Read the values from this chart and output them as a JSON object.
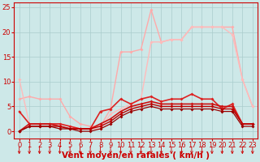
{
  "background_color": "#cde8e8",
  "grid_color": "#aacccc",
  "xlabel": "Vent moyen/en rafales ( km/h )",
  "xlim": [
    -0.5,
    23.5
  ],
  "ylim": [
    -1.5,
    26
  ],
  "yticks": [
    0,
    5,
    10,
    15,
    20,
    25
  ],
  "xticks": [
    0,
    1,
    2,
    3,
    4,
    5,
    6,
    7,
    8,
    9,
    10,
    11,
    12,
    13,
    14,
    15,
    16,
    17,
    18,
    19,
    20,
    21,
    22,
    23
  ],
  "series": [
    {
      "x": [
        0,
        1,
        2,
        3,
        4,
        5,
        6,
        7,
        8,
        9,
        10,
        11,
        12,
        13,
        14,
        15,
        16,
        17,
        18,
        19,
        20,
        21,
        22,
        23
      ],
      "y": [
        6.5,
        7.0,
        6.5,
        6.5,
        6.5,
        3.0,
        1.5,
        1.0,
        1.0,
        4.5,
        16.0,
        16.0,
        16.5,
        24.5,
        18.0,
        18.5,
        18.5,
        21.0,
        21.0,
        21.0,
        21.0,
        21.0,
        10.5,
        5.0
      ],
      "color": "#ffaaaa",
      "marker": "D",
      "markersize": 2,
      "linewidth": 1.0
    },
    {
      "x": [
        0,
        1,
        2,
        3,
        4,
        5,
        6,
        7,
        8,
        9,
        10,
        11,
        12,
        13,
        14,
        15,
        16,
        17,
        18,
        19,
        20,
        21,
        22,
        23
      ],
      "y": [
        10.5,
        1.5,
        1.5,
        1.5,
        1.5,
        1.0,
        0.5,
        0.5,
        0.5,
        3.5,
        4.5,
        5.5,
        6.5,
        18.0,
        18.0,
        18.5,
        18.5,
        21.0,
        21.0,
        21.0,
        21.0,
        19.5,
        10.5,
        5.0
      ],
      "color": "#ffbbbb",
      "marker": "D",
      "markersize": 2,
      "linewidth": 1.0
    },
    {
      "x": [
        0,
        1,
        2,
        3,
        4,
        5,
        6,
        7,
        8,
        9,
        10,
        11,
        12,
        13,
        14,
        15,
        16,
        17,
        18,
        19,
        20,
        21,
        22,
        23
      ],
      "y": [
        4.0,
        1.5,
        1.5,
        1.5,
        1.5,
        1.0,
        0.5,
        0.5,
        4.0,
        4.5,
        6.5,
        5.5,
        6.5,
        7.0,
        6.0,
        6.5,
        6.5,
        7.5,
        6.5,
        6.5,
        4.5,
        5.5,
        1.5,
        1.5
      ],
      "color": "#dd2222",
      "marker": "D",
      "markersize": 2,
      "linewidth": 1.2
    },
    {
      "x": [
        0,
        1,
        2,
        3,
        4,
        5,
        6,
        7,
        8,
        9,
        10,
        11,
        12,
        13,
        14,
        15,
        16,
        17,
        18,
        19,
        20,
        21,
        22,
        23
      ],
      "y": [
        0.0,
        1.5,
        1.5,
        1.5,
        1.0,
        0.5,
        0.5,
        0.5,
        1.5,
        2.5,
        4.0,
        5.0,
        5.5,
        6.0,
        5.5,
        5.5,
        5.5,
        5.5,
        5.5,
        5.5,
        5.0,
        5.0,
        1.5,
        1.5
      ],
      "color": "#cc1111",
      "marker": "D",
      "markersize": 2,
      "linewidth": 1.2
    },
    {
      "x": [
        0,
        1,
        2,
        3,
        4,
        5,
        6,
        7,
        8,
        9,
        10,
        11,
        12,
        13,
        14,
        15,
        16,
        17,
        18,
        19,
        20,
        21,
        22,
        23
      ],
      "y": [
        0.0,
        1.0,
        1.0,
        1.0,
        1.0,
        0.5,
        0.5,
        0.5,
        1.0,
        2.0,
        3.5,
        4.5,
        5.0,
        5.5,
        5.0,
        5.0,
        5.0,
        5.0,
        5.0,
        5.0,
        4.5,
        4.5,
        1.5,
        1.5
      ],
      "color": "#bb0000",
      "marker": "D",
      "markersize": 2,
      "linewidth": 1.0
    },
    {
      "x": [
        0,
        1,
        2,
        3,
        4,
        5,
        6,
        7,
        8,
        9,
        10,
        11,
        12,
        13,
        14,
        15,
        16,
        17,
        18,
        19,
        20,
        21,
        22,
        23
      ],
      "y": [
        0.0,
        1.0,
        1.0,
        1.0,
        0.5,
        0.5,
        0.0,
        0.0,
        0.5,
        1.5,
        3.0,
        4.0,
        4.5,
        5.0,
        4.5,
        4.5,
        4.5,
        4.5,
        4.5,
        4.5,
        4.0,
        4.0,
        1.0,
        1.0
      ],
      "color": "#990000",
      "marker": "D",
      "markersize": 2,
      "linewidth": 0.9
    }
  ],
  "xlabel_color": "#cc0000",
  "xlabel_fontsize": 7.5,
  "tick_color": "#cc0000",
  "tick_fontsize": 6,
  "axis_line_color": "#cc0000"
}
